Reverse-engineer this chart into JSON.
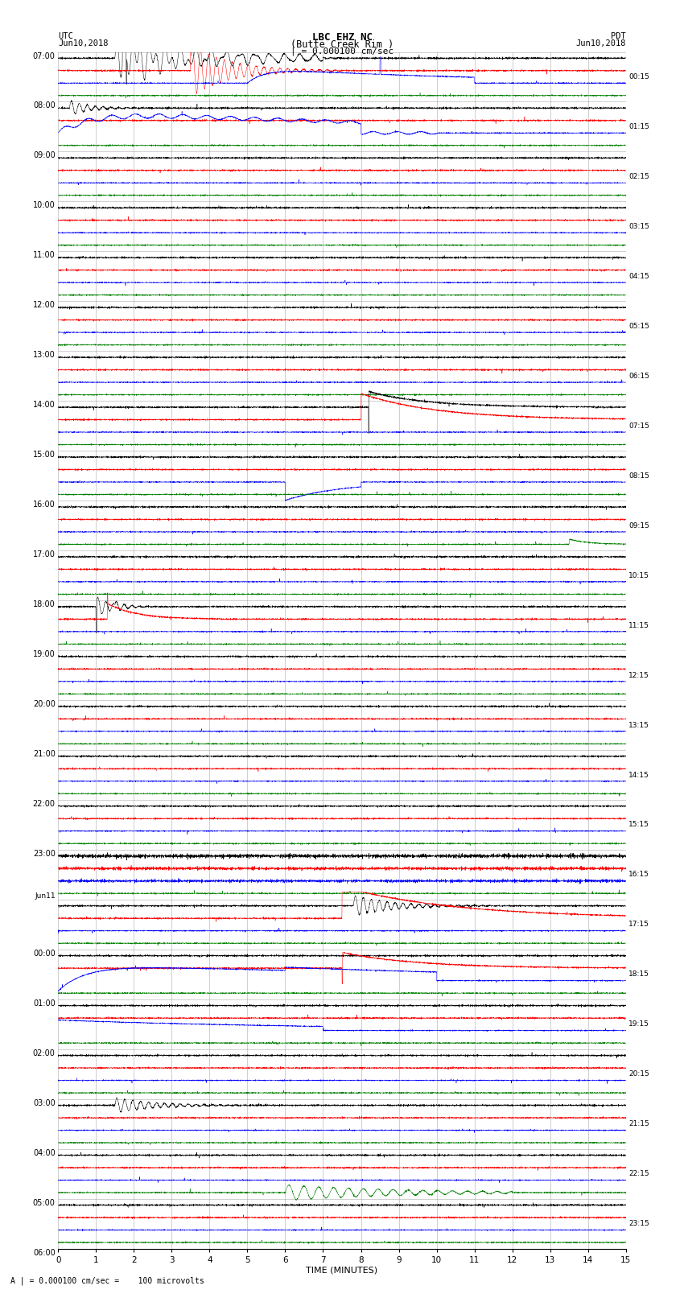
{
  "title_line1": "LBC EHZ NC",
  "title_line2": "(Butte Creek Rim )",
  "scale_label": "| = 0.000100 cm/sec",
  "footer_label": "A | = 0.000100 cm/sec =    100 microvolts",
  "left_label": "UTC",
  "left_date": "Jun10,2018",
  "right_label": "PDT",
  "right_date": "Jun10,2018",
  "xlabel": "TIME (MINUTES)",
  "xlim": [
    0,
    15
  ],
  "xticks": [
    0,
    1,
    2,
    3,
    4,
    5,
    6,
    7,
    8,
    9,
    10,
    11,
    12,
    13,
    14,
    15
  ],
  "left_times": [
    "07:00",
    "08:00",
    "09:00",
    "10:00",
    "11:00",
    "12:00",
    "13:00",
    "14:00",
    "15:00",
    "16:00",
    "17:00",
    "18:00",
    "19:00",
    "20:00",
    "21:00",
    "22:00",
    "23:00",
    "Jun11",
    "00:00",
    "01:00",
    "02:00",
    "03:00",
    "04:00",
    "05:00",
    "06:00"
  ],
  "left_times_is_date": [
    false,
    false,
    false,
    false,
    false,
    false,
    false,
    false,
    false,
    false,
    false,
    false,
    false,
    false,
    false,
    false,
    false,
    true,
    false,
    false,
    false,
    false,
    false,
    false,
    false
  ],
  "right_times": [
    "00:15",
    "01:15",
    "02:15",
    "03:15",
    "04:15",
    "05:15",
    "06:15",
    "07:15",
    "08:15",
    "09:15",
    "10:15",
    "11:15",
    "12:15",
    "13:15",
    "14:15",
    "15:15",
    "16:15",
    "17:15",
    "18:15",
    "19:15",
    "20:15",
    "21:15",
    "22:15",
    "23:15"
  ],
  "n_rows": 24,
  "traces_per_row": 4,
  "trace_colors": [
    "black",
    "red",
    "blue",
    "green"
  ],
  "bg_color": "#ffffff",
  "grid_color": "#888888",
  "figsize": [
    8.5,
    16.13
  ]
}
